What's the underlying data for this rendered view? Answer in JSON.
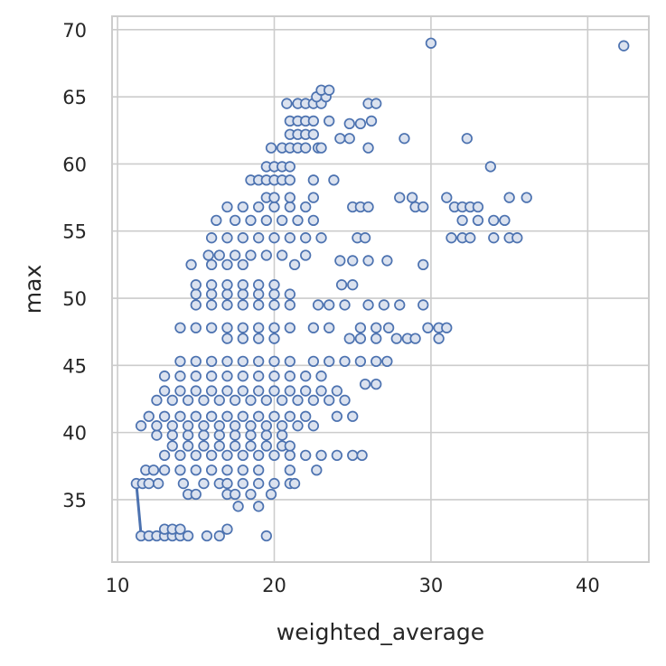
{
  "chart_data": {
    "type": "scatter",
    "title": "",
    "xlabel": "weighted_average",
    "ylabel": "max",
    "xlim": [
      9.65,
      43.9
    ],
    "ylim": [
      30.35,
      71.0
    ],
    "xticks": [
      10,
      20,
      30,
      40
    ],
    "yticks": [
      35,
      40,
      45,
      50,
      55,
      60,
      65,
      70
    ],
    "grid": true,
    "colors": {
      "marker_edge": "#4c72b0",
      "marker_fill": "#dbe2ef",
      "line": "#4c72b0",
      "grid": "#cccccc"
    },
    "line": [
      [
        11.2,
        36.2
      ],
      [
        11.5,
        32.4
      ],
      [
        14.5,
        32.2
      ]
    ],
    "rows": [
      {
        "y": 32.3,
        "x": [
          11.5,
          12,
          12.5,
          13,
          13.5,
          14,
          14.5,
          15.7,
          16.5,
          19.5
        ]
      },
      {
        "y": 32.8,
        "x": [
          13,
          13.5,
          14,
          17
        ]
      },
      {
        "y": 34.5,
        "x": [
          17.7,
          19
        ]
      },
      {
        "y": 35.4,
        "x": [
          14.5,
          15,
          17,
          17.5,
          18.5,
          19.8
        ]
      },
      {
        "y": 36.2,
        "x": [
          11.2,
          11.6,
          12,
          12.6,
          14.2,
          15.5,
          16.5,
          17,
          18,
          19,
          20,
          21,
          21.3
        ]
      },
      {
        "y": 37.2,
        "x": [
          11.8,
          12.3,
          13,
          14,
          15,
          16,
          17,
          18,
          19,
          21,
          22.7
        ]
      },
      {
        "y": 38.3,
        "x": [
          13,
          14,
          15,
          16,
          17,
          18,
          19,
          20,
          21,
          22,
          23,
          24,
          25,
          25.6
        ]
      },
      {
        "y": 39.0,
        "x": [
          13.5,
          14.5,
          15.5,
          16.5,
          17.5,
          18.5,
          19.5,
          20.5,
          21
        ]
      },
      {
        "y": 39.8,
        "x": [
          12.5,
          13.5,
          14.5,
          15.5,
          16.5,
          17.5,
          18.5,
          19.5,
          20.5
        ]
      },
      {
        "y": 40.5,
        "x": [
          11.5,
          12.5,
          13.5,
          14.5,
          15.5,
          16.5,
          17.5,
          18.5,
          19.5,
          20.5,
          21.5,
          22.5
        ]
      },
      {
        "y": 41.2,
        "x": [
          12,
          13,
          14,
          15,
          16,
          17,
          18,
          19,
          20,
          21,
          22,
          24,
          25
        ]
      },
      {
        "y": 42.4,
        "x": [
          12.5,
          13.5,
          14.5,
          15.5,
          16.5,
          17.5,
          18.5,
          19.5,
          20.5,
          21.5,
          22.5,
          23.5,
          24.5
        ]
      },
      {
        "y": 43.1,
        "x": [
          13,
          14,
          15,
          16,
          17,
          18,
          19,
          20,
          21,
          22,
          23,
          24
        ]
      },
      {
        "y": 43.6,
        "x": [
          25.8,
          26.5
        ]
      },
      {
        "y": 44.2,
        "x": [
          13,
          14,
          15,
          16,
          17,
          18,
          19,
          20,
          21,
          22,
          23
        ]
      },
      {
        "y": 45.3,
        "x": [
          14,
          15,
          16,
          17,
          18,
          19,
          20,
          21,
          22.5,
          23.5,
          24.5,
          25.5,
          26.5,
          27.2
        ]
      },
      {
        "y": 47.0,
        "x": [
          17,
          18,
          19,
          20,
          24.8,
          25.5,
          26.5,
          27.8,
          28.5,
          29,
          30.5
        ]
      },
      {
        "y": 47.8,
        "x": [
          14,
          15,
          16,
          17,
          18,
          19,
          20,
          21,
          22.5,
          23.5,
          25.5,
          26.5,
          27.3,
          29.8,
          30.5,
          31
        ]
      },
      {
        "y": 49.5,
        "x": [
          15,
          16,
          17,
          18,
          19,
          20,
          21,
          22.8,
          23.5,
          24.5,
          26,
          27,
          28,
          29.5
        ]
      },
      {
        "y": 50.3,
        "x": [
          15,
          16,
          17,
          18,
          19,
          20,
          21
        ]
      },
      {
        "y": 51.0,
        "x": [
          15,
          16,
          17,
          18,
          19,
          20,
          24.3,
          25
        ]
      },
      {
        "y": 52.5,
        "x": [
          14.7,
          16,
          17,
          18,
          21.3,
          29.5
        ]
      },
      {
        "y": 52.8,
        "x": [
          24.2,
          25,
          26,
          27.2
        ]
      },
      {
        "y": 53.2,
        "x": [
          15.8,
          16.5,
          17.5,
          18.5,
          19.5,
          20.5,
          22
        ]
      },
      {
        "y": 54.5,
        "x": [
          16,
          17,
          18,
          19,
          20,
          21,
          22,
          23,
          25.3,
          25.8,
          31.3,
          32,
          32.5,
          34,
          35,
          35.5
        ]
      },
      {
        "y": 55.8,
        "x": [
          16.3,
          17.5,
          18.5,
          19.5,
          20.5,
          21.5,
          22.5,
          32,
          33,
          34,
          34.7
        ]
      },
      {
        "y": 56.8,
        "x": [
          17,
          18,
          19,
          20,
          21,
          22,
          25,
          25.5,
          26,
          29,
          29.5,
          31.5,
          32,
          32.5,
          33
        ]
      },
      {
        "y": 57.5,
        "x": [
          19.5,
          20,
          21,
          22.5,
          28,
          28.8,
          31,
          35,
          36.1
        ]
      },
      {
        "y": 58.8,
        "x": [
          18.5,
          19,
          19.5,
          20,
          20.5,
          21,
          22.5,
          23.8
        ]
      },
      {
        "y": 59.8,
        "x": [
          19.5,
          20,
          20.5,
          21,
          33.8
        ]
      },
      {
        "y": 61.2,
        "x": [
          19.8,
          20.5,
          21,
          21.5,
          22,
          22.8,
          23,
          26
        ]
      },
      {
        "y": 61.9,
        "x": [
          24.2,
          24.8,
          28.3,
          32.3
        ]
      },
      {
        "y": 62.2,
        "x": [
          21,
          21.5,
          22,
          22.5
        ]
      },
      {
        "y": 63.0,
        "x": [
          24.8,
          25.5
        ]
      },
      {
        "y": 63.2,
        "x": [
          21,
          21.5,
          22,
          22.5,
          23.5,
          26.2
        ]
      },
      {
        "y": 64.5,
        "x": [
          20.8,
          21.5,
          22,
          22.5,
          23,
          26,
          26.5
        ]
      },
      {
        "y": 65.0,
        "x": [
          22.7,
          23.3
        ]
      },
      {
        "y": 65.5,
        "x": [
          23,
          23.5
        ]
      },
      {
        "y": 69.0,
        "x": [
          30
        ]
      },
      {
        "y": 68.8,
        "x": [
          42.3
        ]
      }
    ]
  }
}
